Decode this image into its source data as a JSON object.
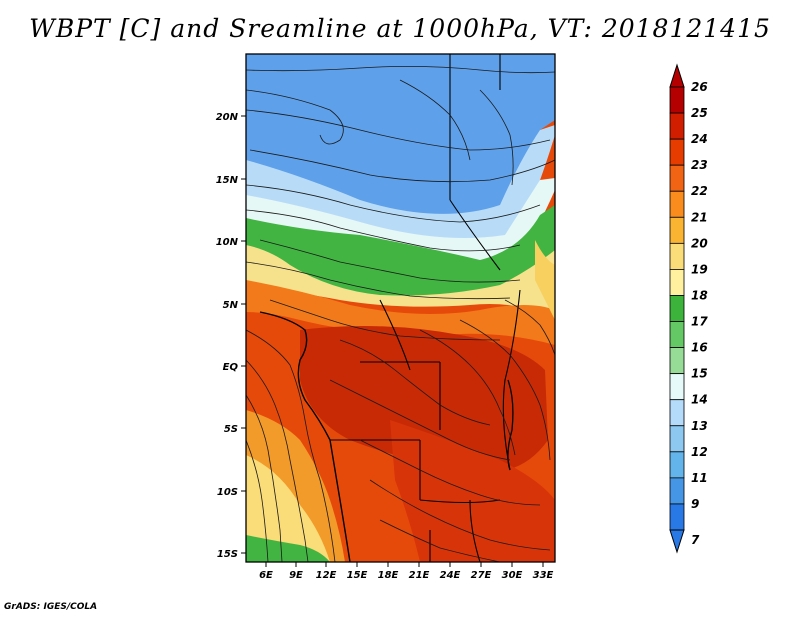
{
  "title": "WBPT [C] and Sreamline at 1000hPa, VT: 2018121415",
  "credit": "GrADS: IGES/COLA",
  "map": {
    "lon_labels": [
      "6E",
      "9E",
      "12E",
      "15E",
      "18E",
      "21E",
      "24E",
      "27E",
      "30E",
      "33E"
    ],
    "lat_labels": [
      "20N",
      "15N",
      "10N",
      "5N",
      "EQ",
      "5S",
      "10S",
      "15S"
    ]
  },
  "colorbar": {
    "labels": [
      "26",
      "25",
      "24",
      "23",
      "22",
      "21",
      "20",
      "19",
      "18",
      "17",
      "16",
      "15",
      "14",
      "13",
      "12",
      "11",
      "9",
      "7"
    ],
    "colors": [
      "#b40000",
      "#d21e00",
      "#e63c00",
      "#f06414",
      "#fa8c1e",
      "#fab432",
      "#fadc78",
      "#fff0a0",
      "#3cb43c",
      "#64c864",
      "#96dc96",
      "#e6fafa",
      "#b4dcfa",
      "#8cc8f0",
      "#64b4ec",
      "#4696e6",
      "#2878e6"
    ]
  }
}
